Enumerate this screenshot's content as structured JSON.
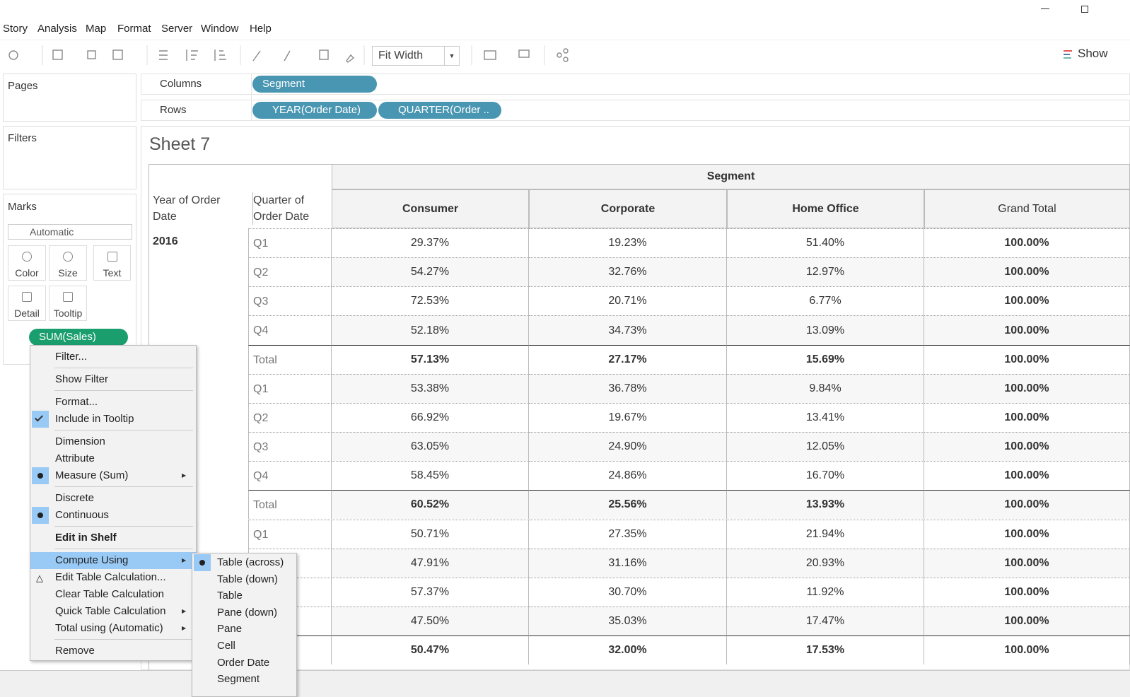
{
  "menu_bar": [
    "Story",
    "Analysis",
    "Map",
    "Format",
    "Server",
    "Window",
    "Help"
  ],
  "toolbar": {
    "fit": "Fit Width",
    "show": "Show"
  },
  "shelves": {
    "pages": "Pages",
    "filters": "Filters",
    "columns": {
      "label": "Columns",
      "pills": [
        "Segment"
      ]
    },
    "rows": {
      "label": "Rows",
      "pills": [
        "YEAR(Order Date)",
        "QUARTER(Order .."
      ]
    }
  },
  "marks": {
    "title": "Marks",
    "type": "Automatic",
    "buttons": [
      "Color",
      "Size",
      "Text",
      "Detail",
      "Tooltip"
    ],
    "pill": "SUM(Sales)"
  },
  "sheet": {
    "title": "Sheet 7",
    "table": {
      "column_group": "Segment",
      "row_headers": [
        "Year of Order Date",
        "Quarter of Order Date"
      ],
      "columns": [
        "Consumer",
        "Corporate",
        "Home Office",
        "Grand Total"
      ],
      "rows": [
        {
          "year": "2016",
          "quarter": "Q1",
          "values": [
            "29.37%",
            "19.23%",
            "51.40%",
            "100.00%"
          ]
        },
        {
          "year": null,
          "quarter": "Q2",
          "values": [
            "54.27%",
            "32.76%",
            "12.97%",
            "100.00%"
          ]
        },
        {
          "year": null,
          "quarter": "Q3",
          "values": [
            "72.53%",
            "20.71%",
            "6.77%",
            "100.00%"
          ]
        },
        {
          "year": null,
          "quarter": "Q4",
          "values": [
            "52.18%",
            "34.73%",
            "13.09%",
            "100.00%"
          ]
        },
        {
          "year": null,
          "quarter": "Total",
          "bold": true,
          "values": [
            "57.13%",
            "27.17%",
            "15.69%",
            "100.00%"
          ]
        },
        {
          "year": null,
          "quarter": "Q1",
          "values": [
            "53.38%",
            "36.78%",
            "9.84%",
            "100.00%"
          ]
        },
        {
          "year": null,
          "quarter": "Q2",
          "values": [
            "66.92%",
            "19.67%",
            "13.41%",
            "100.00%"
          ]
        },
        {
          "year": null,
          "quarter": "Q3",
          "values": [
            "63.05%",
            "24.90%",
            "12.05%",
            "100.00%"
          ]
        },
        {
          "year": null,
          "quarter": "Q4",
          "values": [
            "58.45%",
            "24.86%",
            "16.70%",
            "100.00%"
          ]
        },
        {
          "year": null,
          "quarter": "Total",
          "bold": true,
          "values": [
            "60.52%",
            "25.56%",
            "13.93%",
            "100.00%"
          ]
        },
        {
          "year": null,
          "quarter": "Q1",
          "values": [
            "50.71%",
            "27.35%",
            "21.94%",
            "100.00%"
          ]
        },
        {
          "year": null,
          "quarter": null,
          "values": [
            "47.91%",
            "31.16%",
            "20.93%",
            "100.00%"
          ]
        },
        {
          "year": null,
          "quarter": null,
          "values": [
            "57.37%",
            "30.70%",
            "11.92%",
            "100.00%"
          ]
        },
        {
          "year": null,
          "quarter": null,
          "values": [
            "47.50%",
            "35.03%",
            "17.47%",
            "100.00%"
          ]
        },
        {
          "year": null,
          "quarter": null,
          "bold": true,
          "values": [
            "50.47%",
            "32.00%",
            "17.53%",
            "100.00%"
          ]
        }
      ]
    }
  },
  "context_menu": {
    "groups": [
      [
        {
          "label": "Filter..."
        }
      ],
      [
        {
          "label": "Show Filter"
        }
      ],
      [
        {
          "label": "Format..."
        },
        {
          "label": "Include in Tooltip",
          "mark": "check"
        }
      ],
      [
        {
          "label": "Dimension"
        },
        {
          "label": "Attribute"
        },
        {
          "label": "Measure (Sum)",
          "mark": "bullet",
          "submenu": true
        }
      ],
      [
        {
          "label": "Discrete"
        },
        {
          "label": "Continuous",
          "mark": "bullet"
        }
      ],
      [
        {
          "label": "Edit in Shelf",
          "bold": true
        }
      ],
      [
        {
          "label": "Compute Using",
          "submenu": true,
          "highlighted": true
        },
        {
          "label": "Edit Table Calculation...",
          "mark": "delta"
        },
        {
          "label": "Clear Table Calculation"
        },
        {
          "label": "Quick Table Calculation",
          "submenu": true
        },
        {
          "label": "Total using (Automatic)",
          "submenu": true
        }
      ],
      [
        {
          "label": "Remove"
        }
      ]
    ]
  },
  "submenu": {
    "items": [
      {
        "label": "Table (across)",
        "mark": "bullet"
      },
      {
        "label": "Table (down)"
      },
      {
        "label": "Table"
      },
      {
        "label": "Pane (down)"
      },
      {
        "label": "Pane"
      },
      {
        "label": "Cell"
      },
      {
        "label": "Order Date"
      },
      {
        "label": "Segment"
      }
    ]
  }
}
